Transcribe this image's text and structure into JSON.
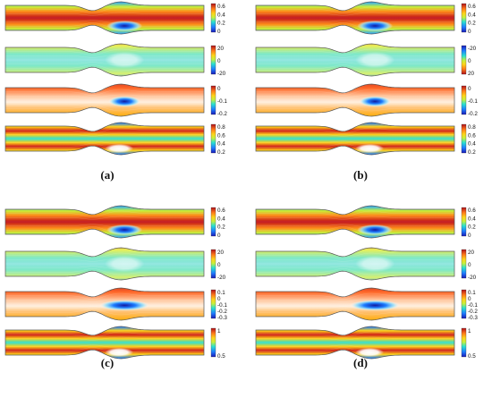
{
  "panels": [
    {
      "id": "a",
      "label": "(a)",
      "rows": [
        {
          "field": "stream",
          "colorbar": {
            "ticks": [
              "0.6",
              "0.4",
              "0.2",
              "0"
            ],
            "reverse": false
          }
        },
        {
          "field": "diverge",
          "colorbar": {
            "ticks": [
              "20",
              "0",
              "-20"
            ],
            "reverse": false
          }
        },
        {
          "field": "mid",
          "colorbar": {
            "ticks": [
              "0",
              "-0.1",
              "-0.2"
            ],
            "reverse": false
          }
        },
        {
          "field": "bands",
          "colorbar": {
            "ticks": [
              "0.8",
              "0.6",
              "0.4",
              "0.2"
            ],
            "reverse": false
          }
        }
      ]
    },
    {
      "id": "b",
      "label": "(b)",
      "rows": [
        {
          "field": "stream",
          "colorbar": {
            "ticks": [
              "0.6",
              "0.4",
              "0.2",
              "0"
            ],
            "reverse": false
          }
        },
        {
          "field": "diverge",
          "colorbar": {
            "ticks": [
              "-20",
              "0",
              "20"
            ],
            "reverse": true
          }
        },
        {
          "field": "mid",
          "colorbar": {
            "ticks": [
              "0",
              "-0.1",
              "-0.2"
            ],
            "reverse": false
          }
        },
        {
          "field": "bands",
          "colorbar": {
            "ticks": [
              "0.8",
              "0.6",
              "0.4",
              "0.2"
            ],
            "reverse": false
          }
        }
      ]
    },
    {
      "id": "c",
      "label": "(c)",
      "rows": [
        {
          "field": "stream",
          "colorbar": {
            "ticks": [
              "0.6",
              "0.4",
              "0.2",
              "0"
            ],
            "reverse": false
          }
        },
        {
          "field": "diverge",
          "colorbar": {
            "ticks": [
              "20",
              "0",
              "-20"
            ],
            "reverse": false
          }
        },
        {
          "field": "mid",
          "colorbar": {
            "ticks": [
              "0.1",
              "0",
              "-0.1",
              "-0.2",
              "-0.3"
            ],
            "reverse": false
          }
        },
        {
          "field": "bands",
          "colorbar": {
            "ticks": [
              "1",
              "0.5"
            ],
            "reverse": false
          }
        }
      ]
    },
    {
      "id": "d",
      "label": "(d)",
      "rows": [
        {
          "field": "stream",
          "colorbar": {
            "ticks": [
              "0.6",
              "0.4",
              "0.2",
              "0"
            ],
            "reverse": false
          }
        },
        {
          "field": "diverge",
          "colorbar": {
            "ticks": [
              "20",
              "0",
              "-20"
            ],
            "reverse": false
          }
        },
        {
          "field": "mid",
          "colorbar": {
            "ticks": [
              "0.1",
              "0",
              "-0.1",
              "-0.2",
              "-0.3"
            ],
            "reverse": false
          }
        },
        {
          "field": "bands",
          "colorbar": {
            "ticks": [
              "1",
              "0.5"
            ],
            "reverse": false
          }
        }
      ]
    }
  ],
  "colormap": [
    "#1a1ab8",
    "#1f7fff",
    "#2ae0d0",
    "#c8f03a",
    "#ffd21a",
    "#ff7a1a",
    "#e0301a",
    "#b0101a"
  ]
}
